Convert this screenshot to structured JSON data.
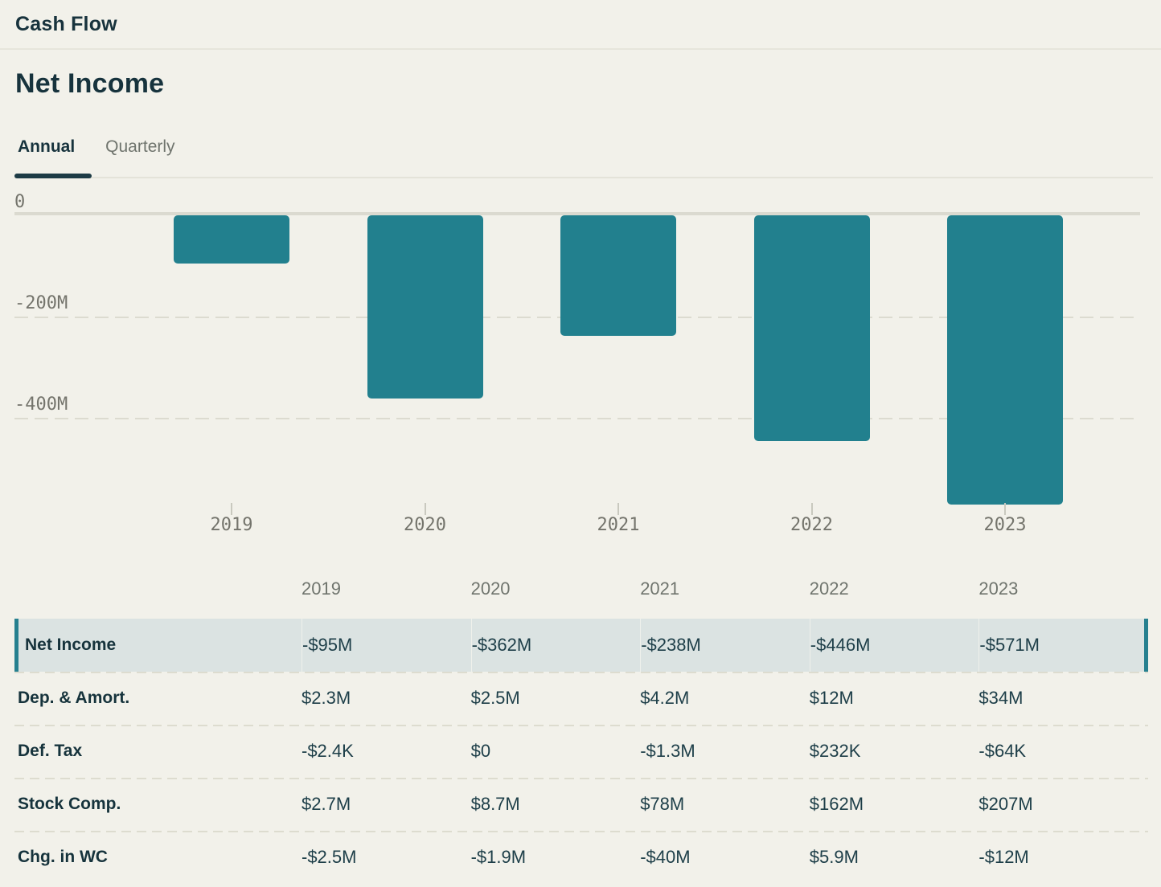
{
  "header": {
    "title": "Cash Flow"
  },
  "section": {
    "title": "Net Income"
  },
  "tabs": [
    {
      "label": "Annual",
      "active": true
    },
    {
      "label": "Quarterly",
      "active": false
    }
  ],
  "chart_data": {
    "type": "bar",
    "title": "Net Income (Annual)",
    "categories": [
      "2019",
      "2020",
      "2021",
      "2022",
      "2023"
    ],
    "values": [
      -95,
      -362,
      -238,
      -446,
      -571
    ],
    "value_unit": "millions USD",
    "value_labels": [
      "-$95M",
      "-$362M",
      "-$238M",
      "-$446M",
      "-$571M"
    ],
    "yticks": [
      {
        "label": "0",
        "value": 0
      },
      {
        "label": "-200M",
        "value": -200
      },
      {
        "label": "-400M",
        "value": -400
      }
    ],
    "ylim": [
      -620,
      0
    ],
    "grid": "horizontal-dashed",
    "legend": "none",
    "bar_color": "#22808e"
  },
  "table": {
    "columns": [
      "2019",
      "2020",
      "2021",
      "2022",
      "2023"
    ],
    "rows": [
      {
        "label": "Net Income",
        "highlighted": true,
        "values": [
          "-$95M",
          "-$362M",
          "-$238M",
          "-$446M",
          "-$571M"
        ]
      },
      {
        "label": "Dep. & Amort.",
        "highlighted": false,
        "values": [
          "$2.3M",
          "$2.5M",
          "$4.2M",
          "$12M",
          "$34M"
        ]
      },
      {
        "label": "Def. Tax",
        "highlighted": false,
        "values": [
          "-$2.4K",
          "$0",
          "-$1.3M",
          "$232K",
          "-$64K"
        ]
      },
      {
        "label": "Stock Comp.",
        "highlighted": false,
        "values": [
          "$2.7M",
          "$8.7M",
          "$78M",
          "$162M",
          "$207M"
        ]
      },
      {
        "label": "Chg. in WC",
        "highlighted": false,
        "values": [
          "-$2.5M",
          "-$1.9M",
          "-$40M",
          "$5.9M",
          "-$12M"
        ]
      }
    ]
  },
  "colors": {
    "background": "#f2f1ea",
    "text_dark": "#17333d",
    "text_gray": "#6f746d",
    "axis_gray": "#74746c",
    "bar_teal": "#22808e",
    "highlight_row_bg": "#dbe3e2",
    "highlight_accent": "#26808f",
    "zero_line": "#dbdad0",
    "dashed_gridline": "#dcdbd0",
    "divider": "#e4e3d9"
  }
}
